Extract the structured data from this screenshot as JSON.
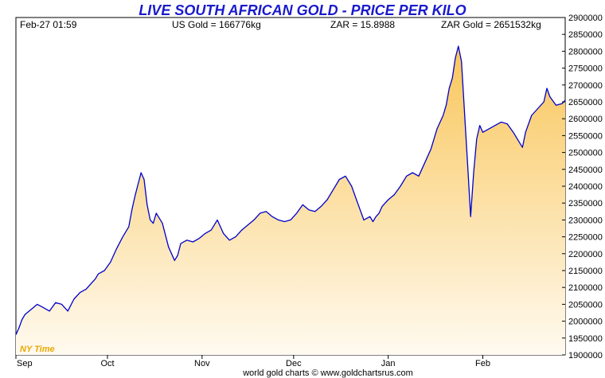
{
  "chart_data": {
    "type": "area",
    "title": "LIVE SOUTH AFRICAN GOLD - PRICE PER KILO",
    "footer": "world gold charts © www.goldchartsrus.com",
    "timezone_label": "NY Time",
    "info": {
      "datetime": "Feb-27  01:59",
      "us_gold": "US Gold = 166776kg",
      "zar_rate": "ZAR = 15.8988",
      "zar_gold": "ZAR Gold = 2651532kg"
    },
    "x_labels": [
      "Sep",
      "Oct",
      "Nov",
      "Dec",
      "Jan",
      "Feb"
    ],
    "y_ticks": [
      1900000,
      1950000,
      2000000,
      2050000,
      2100000,
      2150000,
      2200000,
      2250000,
      2300000,
      2350000,
      2400000,
      2450000,
      2500000,
      2550000,
      2600000,
      2650000,
      2700000,
      2750000,
      2800000,
      2850000,
      2900000
    ],
    "y_tick_labels": [
      "1900000",
      "1950000",
      "2000000",
      "2050000",
      "2100000",
      "2150000",
      "2200000",
      "2250000",
      "2300000",
      "2350000",
      "2400000",
      "2450000",
      "2500000",
      "2550000",
      "2600000",
      "2650000",
      "2700000",
      "2750000",
      "2800000",
      "2850000",
      "2900000"
    ],
    "ylim": [
      1900000,
      2900000
    ],
    "x_range_days": [
      0,
      180
    ],
    "month_start_days": [
      0,
      30,
      61,
      91,
      122,
      153
    ],
    "grid": false,
    "colors": {
      "line": "#0000cc",
      "fill_top": "#f9c65a",
      "fill_bottom": "#fffaf0",
      "title": "#1a1acc",
      "timezone": "#e8a800",
      "axis": "#000000"
    },
    "series": [
      {
        "x": [
          0,
          1,
          2,
          3,
          5,
          7,
          9,
          11,
          13,
          15,
          17,
          19,
          21,
          23,
          25,
          26,
          27,
          29,
          31,
          33,
          35,
          37,
          38,
          39,
          40,
          41,
          42,
          43,
          44,
          45,
          46,
          48,
          50,
          52,
          53,
          54,
          56,
          58,
          60,
          62,
          64,
          66,
          68,
          70,
          72,
          74,
          76,
          78,
          80,
          82,
          84,
          86,
          88,
          90,
          92,
          94,
          96,
          98,
          100,
          102,
          104,
          106,
          108,
          110,
          112,
          114,
          116,
          117,
          118,
          119,
          120,
          121,
          122,
          124,
          126,
          128,
          130,
          132,
          134,
          136,
          138,
          140,
          141,
          142,
          143,
          144,
          145,
          146,
          147,
          148,
          149,
          150,
          151,
          152,
          153,
          155,
          157,
          159,
          161,
          163,
          165,
          166,
          167,
          169,
          171,
          173,
          174,
          175,
          177,
          179,
          180
        ],
        "values": [
          1960000,
          1980000,
          2005000,
          2020000,
          2035000,
          2050000,
          2040000,
          2030000,
          2055000,
          2050000,
          2030000,
          2065000,
          2085000,
          2095000,
          2115000,
          2125000,
          2140000,
          2150000,
          2175000,
          2215000,
          2250000,
          2280000,
          2330000,
          2370000,
          2405000,
          2440000,
          2420000,
          2345000,
          2300000,
          2290000,
          2320000,
          2290000,
          2220000,
          2180000,
          2195000,
          2230000,
          2240000,
          2235000,
          2245000,
          2260000,
          2270000,
          2300000,
          2260000,
          2240000,
          2250000,
          2270000,
          2285000,
          2300000,
          2320000,
          2325000,
          2310000,
          2300000,
          2295000,
          2300000,
          2320000,
          2345000,
          2330000,
          2325000,
          2340000,
          2360000,
          2390000,
          2420000,
          2430000,
          2400000,
          2350000,
          2300000,
          2310000,
          2295000,
          2310000,
          2320000,
          2340000,
          2350000,
          2360000,
          2375000,
          2400000,
          2430000,
          2440000,
          2430000,
          2470000,
          2510000,
          2570000,
          2610000,
          2640000,
          2690000,
          2720000,
          2780000,
          2815000,
          2770000,
          2620000,
          2470000,
          2310000,
          2440000,
          2540000,
          2580000,
          2560000,
          2570000,
          2580000,
          2590000,
          2585000,
          2560000,
          2530000,
          2515000,
          2560000,
          2610000,
          2630000,
          2650000,
          2690000,
          2665000,
          2640000,
          2645000,
          2655000
        ]
      }
    ]
  }
}
